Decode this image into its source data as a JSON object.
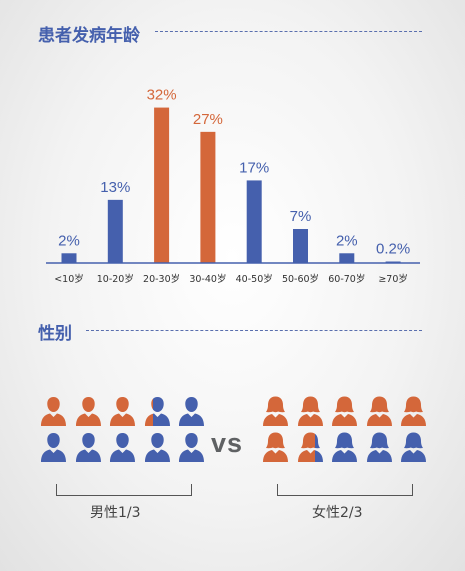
{
  "sections": {
    "age_title": "患者发病年龄",
    "gender_title": "性别"
  },
  "colors": {
    "blue": "#4560ad",
    "orange": "#d4673a",
    "baseline": "#4560ad"
  },
  "chart_data": {
    "type": "bar",
    "title": "患者发病年龄",
    "xlabel": "",
    "ylabel": "",
    "ylim": [
      0,
      35
    ],
    "grid": false,
    "categories": [
      "<10岁",
      "10-20岁",
      "20-30岁",
      "30-40岁",
      "40-50岁",
      "50-60岁",
      "60-70岁",
      "≥70岁"
    ],
    "values": [
      2,
      13,
      32,
      27,
      17,
      7,
      2,
      0.2
    ],
    "data_labels": [
      "2%",
      "13%",
      "32%",
      "27%",
      "17%",
      "7%",
      "2%",
      "0.2%"
    ],
    "highlight": [
      false,
      false,
      true,
      true,
      false,
      false,
      false,
      false
    ]
  },
  "gender": {
    "vs_label": "vs",
    "male": {
      "label": "男性1/3",
      "orange_fraction": 0.333,
      "icons": 10
    },
    "female": {
      "label": "女性2/3",
      "orange_fraction": 0.667,
      "icons": 10
    }
  }
}
